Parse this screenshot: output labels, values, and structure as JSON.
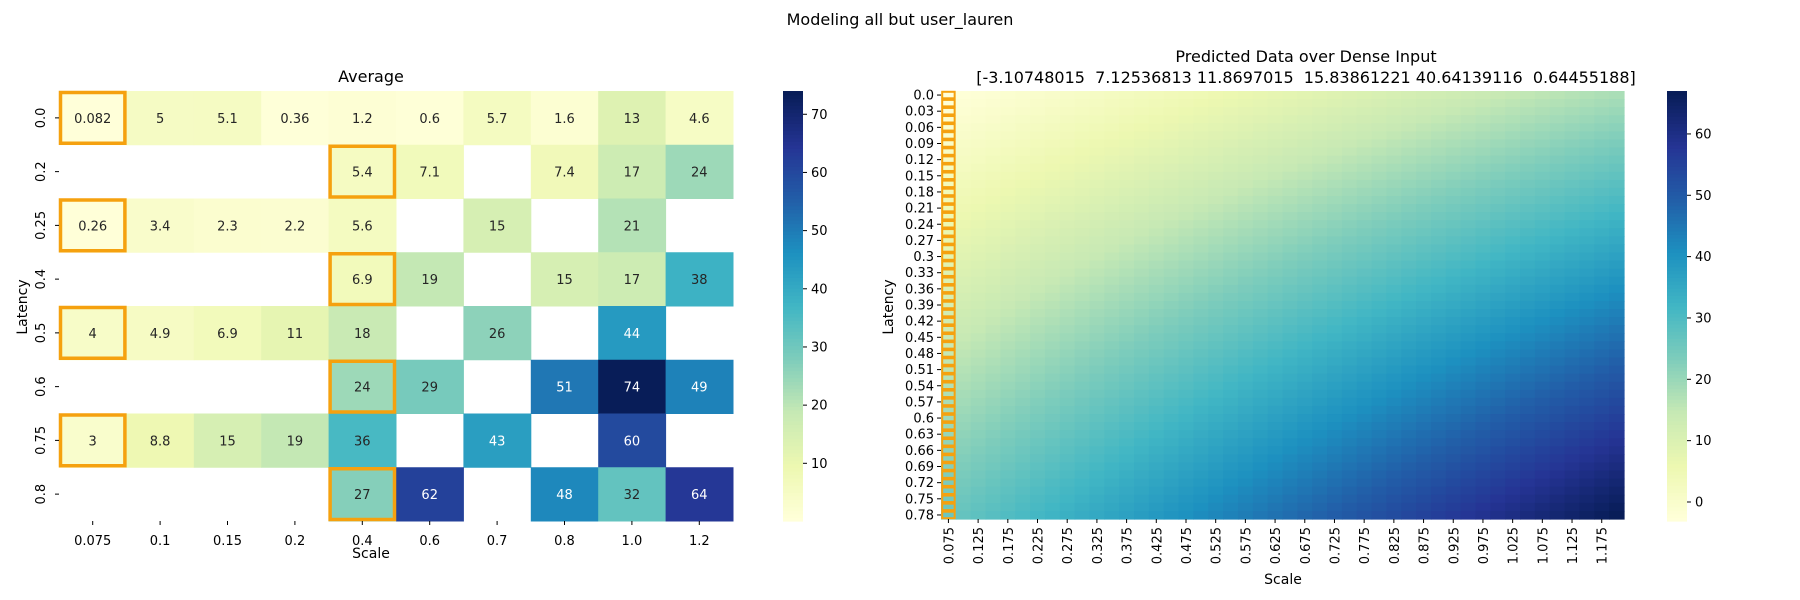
{
  "figure": {
    "suptitle": "Modeling all but user_lauren"
  },
  "colors": {
    "highlight": "#f5a10f",
    "colormap": "YlGnBu",
    "stops": [
      "#ffffd9",
      "#edf8b1",
      "#c7e9b4",
      "#7fcdbb",
      "#41b6c4",
      "#1d91c0",
      "#225ea8",
      "#253494",
      "#081d58"
    ]
  },
  "chart_data": [
    {
      "type": "heatmap",
      "title": "Average",
      "xlabel": "Scale",
      "ylabel": "Latency",
      "x_categories": [
        "0.075",
        "0.1",
        "0.15",
        "0.2",
        "0.4",
        "0.6",
        "0.7",
        "0.8",
        "1.0",
        "1.2"
      ],
      "y_categories": [
        "0.0",
        "0.2",
        "0.25",
        "0.4",
        "0.5",
        "0.6",
        "0.75",
        "0.8"
      ],
      "values": [
        [
          0.082,
          5,
          5.1,
          0.36,
          1.2,
          0.6,
          5.7,
          1.6,
          13,
          4.6
        ],
        [
          null,
          null,
          null,
          null,
          5.4,
          7.1,
          null,
          7.4,
          17,
          24
        ],
        [
          0.26,
          3.4,
          2.3,
          2.2,
          5.6,
          null,
          15,
          null,
          21,
          null
        ],
        [
          null,
          null,
          null,
          null,
          6.9,
          19,
          null,
          15,
          17,
          38
        ],
        [
          4,
          4.9,
          6.9,
          11,
          18,
          null,
          26,
          null,
          44,
          null
        ],
        [
          null,
          null,
          null,
          null,
          24,
          29,
          null,
          51,
          74,
          49
        ],
        [
          3,
          8.8,
          15,
          19,
          36,
          null,
          43,
          null,
          60,
          null
        ],
        [
          null,
          null,
          null,
          null,
          27,
          62,
          null,
          48,
          32,
          64
        ]
      ],
      "value_labels": [
        [
          "0.082",
          "5",
          "5.1",
          "0.36",
          "1.2",
          "0.6",
          "5.7",
          "1.6",
          "13",
          "4.6"
        ],
        [
          null,
          null,
          null,
          null,
          "5.4",
          "7.1",
          null,
          "7.4",
          "17",
          "24"
        ],
        [
          "0.26",
          "3.4",
          "2.3",
          "2.2",
          "5.6",
          null,
          "15",
          null,
          "21",
          null
        ],
        [
          null,
          null,
          null,
          null,
          "6.9",
          "19",
          null,
          "15",
          "17",
          "38"
        ],
        [
          "4",
          "4.9",
          "6.9",
          "11",
          "18",
          null,
          "26",
          null,
          "44",
          null
        ],
        [
          null,
          null,
          null,
          null,
          "24",
          "29",
          null,
          "51",
          "74",
          "49"
        ],
        [
          "3",
          "8.8",
          "15",
          "19",
          "36",
          null,
          "43",
          null,
          "60",
          null
        ],
        [
          null,
          null,
          null,
          null,
          "27",
          "62",
          null,
          "48",
          "32",
          "64"
        ]
      ],
      "highlighted_cells": [
        [
          0,
          0
        ],
        [
          1,
          4
        ],
        [
          2,
          0
        ],
        [
          3,
          4
        ],
        [
          4,
          0
        ],
        [
          5,
          4
        ],
        [
          6,
          0
        ],
        [
          7,
          4
        ]
      ],
      "colorbar": {
        "vmin": 0.082,
        "vmax": 74,
        "ticks": [
          10,
          20,
          30,
          40,
          50,
          60,
          70
        ]
      },
      "grid": false
    },
    {
      "type": "heatmap",
      "title": "Predicted Data over Dense Input",
      "subtitle": "[-3.10748015  7.12536813 11.8697015  15.83861221 40.64139116  0.64455188]",
      "xlabel": "Scale",
      "ylabel": "Latency",
      "x_range": [
        0.075,
        1.2
      ],
      "x_step": 0.025,
      "x_tick_labels": [
        "0.075",
        "0.125",
        "0.175",
        "0.225",
        "0.275",
        "0.325",
        "0.375",
        "0.425",
        "0.475",
        "0.525",
        "0.575",
        "0.625",
        "0.675",
        "0.725",
        "0.775",
        "0.825",
        "0.875",
        "0.925",
        "0.975",
        "1.025",
        "1.075",
        "1.125",
        "1.175"
      ],
      "y_range": [
        0.0,
        0.8
      ],
      "y_step": 0.015,
      "y_tick_labels": [
        "0.0",
        "0.03",
        "0.06",
        "0.09",
        "0.12",
        "0.15",
        "0.18",
        "0.21",
        "0.24",
        "0.27",
        "0.3",
        "0.33",
        "0.36",
        "0.39",
        "0.42",
        "0.45",
        "0.48",
        "0.51",
        "0.54",
        "0.57",
        "0.6",
        "0.63",
        "0.66",
        "0.69",
        "0.72",
        "0.75",
        "0.78"
      ],
      "surface": {
        "corners": {
          "top_left": -3.1,
          "top_right": 18,
          "bottom_left": 26,
          "bottom_right": 67
        },
        "first_column_highlighted": true
      },
      "colorbar": {
        "vmin": -3.1,
        "vmax": 67,
        "ticks": [
          0,
          10,
          20,
          30,
          40,
          50,
          60
        ]
      },
      "grid": false
    }
  ]
}
